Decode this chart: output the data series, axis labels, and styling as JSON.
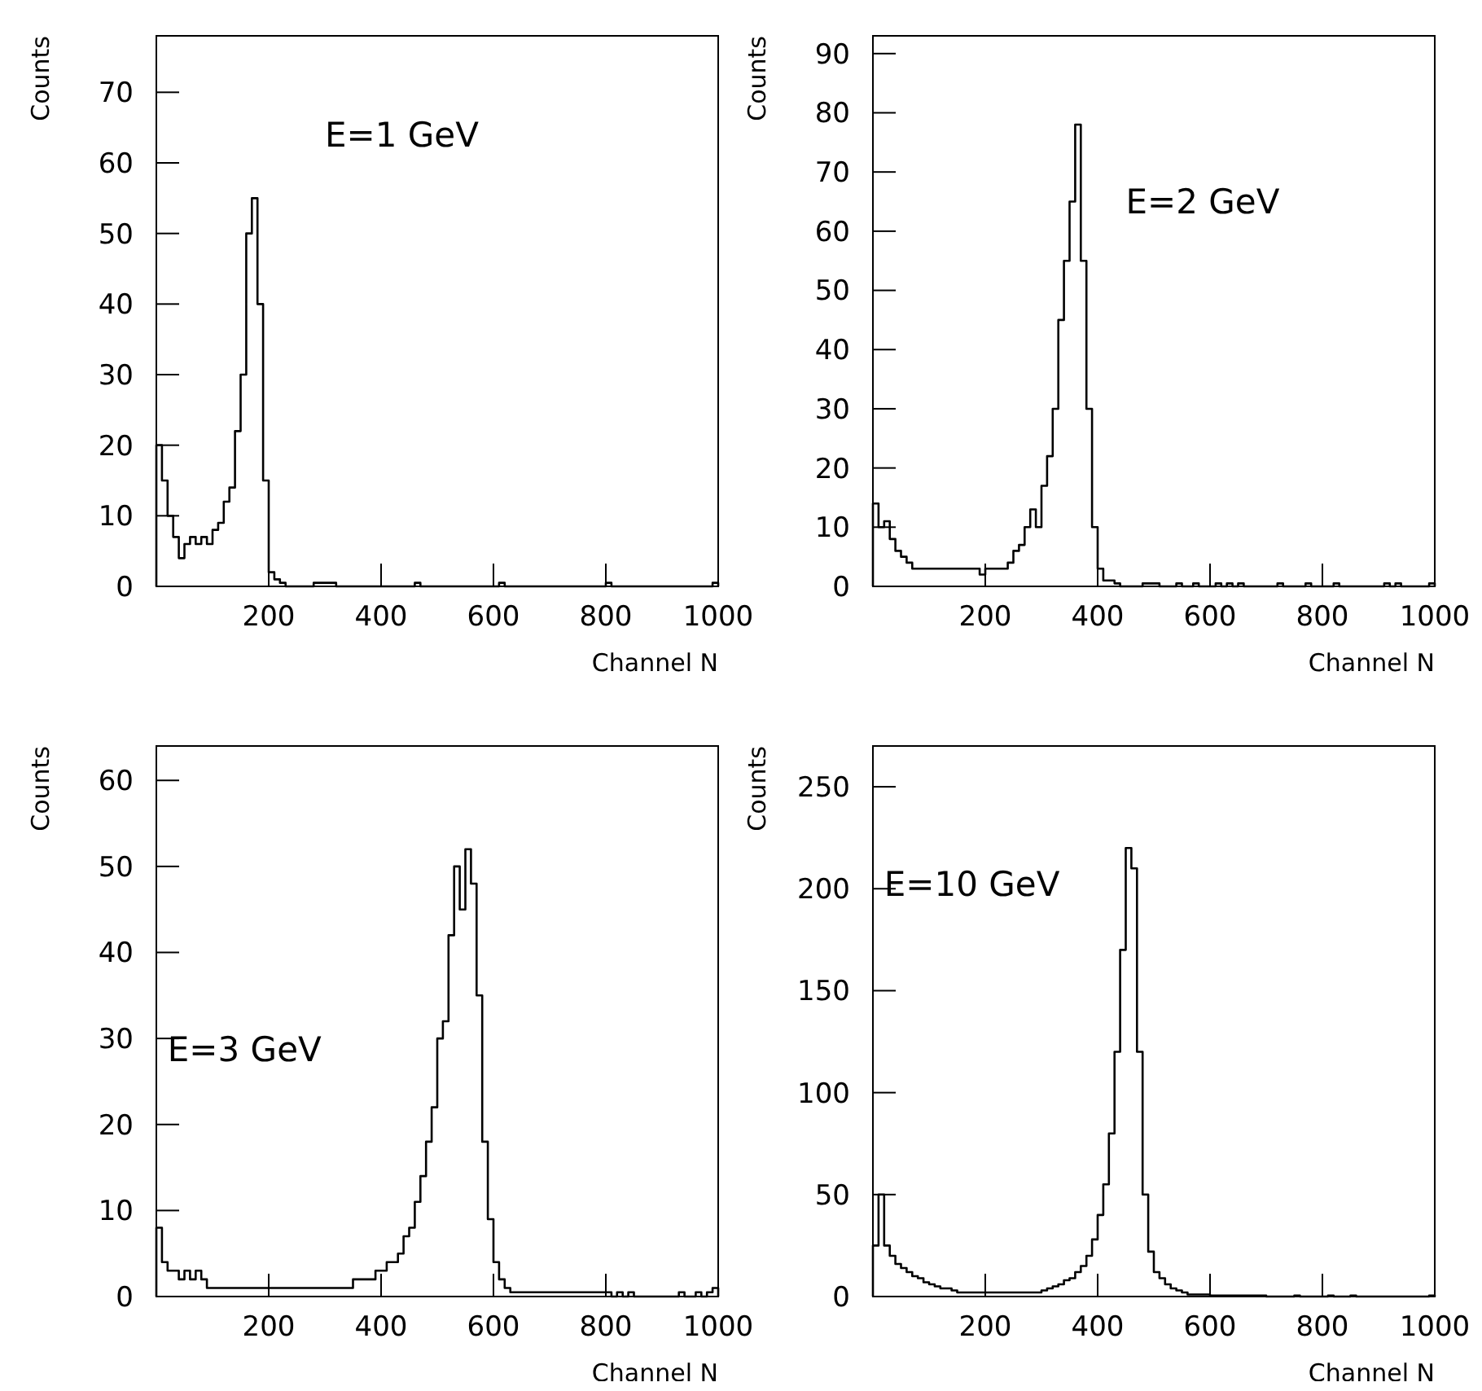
{
  "chart_data": [
    {
      "type": "histogram",
      "xlabel": "Channel N",
      "ylabel": "Counts",
      "annotations": [
        "E=1 GeV"
      ],
      "xlim": [
        0,
        1000
      ],
      "xticks": [
        200,
        400,
        600,
        800,
        1000
      ],
      "ylim": [
        0,
        78
      ],
      "yticks": [
        0,
        10,
        20,
        30,
        40,
        50,
        60,
        70
      ],
      "color": "#000000",
      "bins": [
        0,
        10,
        20,
        30,
        40,
        50,
        60,
        70,
        80,
        90,
        100,
        110,
        120,
        130,
        140,
        150,
        160,
        170,
        180,
        190,
        200,
        210,
        220,
        230,
        240,
        250,
        260,
        270,
        280,
        290,
        300,
        310,
        320,
        330,
        340,
        350,
        360,
        370,
        380,
        390,
        400,
        410,
        420,
        430,
        440,
        450,
        460,
        470,
        480,
        490,
        500,
        510,
        520,
        530,
        540,
        550,
        560,
        570,
        580,
        590,
        600,
        610,
        620,
        630,
        640,
        650,
        660,
        670,
        680,
        690,
        700,
        710,
        720,
        730,
        740,
        750,
        760,
        770,
        780,
        790,
        800,
        810,
        820,
        830,
        840,
        850,
        860,
        870,
        880,
        890,
        900,
        910,
        920,
        930,
        940,
        950,
        960,
        970,
        980,
        990,
        1000
      ],
      "values": [
        20,
        15,
        10,
        7,
        4,
        6,
        7,
        6,
        7,
        6,
        8,
        9,
        12,
        14,
        22,
        30,
        50,
        55,
        40,
        15,
        2,
        1,
        0.5,
        0,
        0,
        0,
        0,
        0,
        0.5,
        0.5,
        0.5,
        0.5,
        0,
        0,
        0,
        0,
        0,
        0,
        0,
        0,
        0,
        0,
        0,
        0,
        0,
        0,
        0.5,
        0,
        0,
        0,
        0,
        0,
        0,
        0,
        0,
        0,
        0,
        0,
        0,
        0,
        0,
        0.5,
        0,
        0,
        0,
        0,
        0,
        0,
        0,
        0,
        0,
        0,
        0,
        0,
        0,
        0,
        0,
        0,
        0,
        0,
        0.5,
        0,
        0,
        0,
        0,
        0,
        0,
        0,
        0,
        0,
        0,
        0,
        0,
        0,
        0,
        0,
        0,
        0,
        0,
        0.5
      ]
    },
    {
      "type": "histogram",
      "xlabel": "Channel N",
      "ylabel": "Counts",
      "annotations": [
        "E=2 GeV"
      ],
      "xlim": [
        0,
        1000
      ],
      "xticks": [
        200,
        400,
        600,
        800,
        1000
      ],
      "ylim": [
        0,
        93
      ],
      "yticks": [
        0,
        10,
        20,
        30,
        40,
        50,
        60,
        70,
        80,
        90
      ],
      "color": "#000000",
      "bins": [
        0,
        10,
        20,
        30,
        40,
        50,
        60,
        70,
        80,
        90,
        100,
        110,
        120,
        130,
        140,
        150,
        160,
        170,
        180,
        190,
        200,
        210,
        220,
        230,
        240,
        250,
        260,
        270,
        280,
        290,
        300,
        310,
        320,
        330,
        340,
        350,
        360,
        370,
        380,
        390,
        400,
        410,
        420,
        430,
        440,
        450,
        460,
        470,
        480,
        490,
        500,
        510,
        520,
        530,
        540,
        550,
        560,
        570,
        580,
        590,
        600,
        610,
        620,
        630,
        640,
        650,
        660,
        670,
        680,
        690,
        700,
        710,
        720,
        730,
        740,
        750,
        760,
        770,
        780,
        790,
        800,
        810,
        820,
        830,
        840,
        850,
        860,
        870,
        880,
        890,
        900,
        910,
        920,
        930,
        940,
        950,
        960,
        970,
        980,
        990,
        1000
      ],
      "values": [
        14,
        10,
        11,
        8,
        6,
        5,
        4,
        3,
        3,
        3,
        3,
        3,
        3,
        3,
        3,
        3,
        3,
        3,
        3,
        2,
        3,
        3,
        3,
        3,
        4,
        6,
        7,
        10,
        13,
        10,
        17,
        22,
        30,
        45,
        55,
        65,
        78,
        55,
        30,
        10,
        3,
        1,
        1,
        0.5,
        0,
        0,
        0,
        0,
        0.5,
        0.5,
        0.5,
        0,
        0,
        0,
        0.5,
        0,
        0,
        0.5,
        0,
        0,
        0,
        0.5,
        0,
        0.5,
        0,
        0.5,
        0,
        0,
        0,
        0,
        0,
        0,
        0.5,
        0,
        0,
        0,
        0,
        0.5,
        0,
        0,
        0,
        0,
        0.5,
        0,
        0,
        0,
        0,
        0,
        0,
        0,
        0,
        0.5,
        0,
        0.5,
        0,
        0,
        0,
        0,
        0,
        0.5
      ]
    },
    {
      "type": "histogram",
      "xlabel": "Channel N",
      "ylabel": "Counts",
      "annotations": [
        "E=3 GeV"
      ],
      "xlim": [
        0,
        1000
      ],
      "xticks": [
        200,
        400,
        600,
        800,
        1000
      ],
      "ylim": [
        0,
        64
      ],
      "yticks": [
        0,
        10,
        20,
        30,
        40,
        50,
        60
      ],
      "color": "#000000",
      "bins": [
        0,
        10,
        20,
        30,
        40,
        50,
        60,
        70,
        80,
        90,
        100,
        110,
        120,
        130,
        140,
        150,
        160,
        170,
        180,
        190,
        200,
        210,
        220,
        230,
        240,
        250,
        260,
        270,
        280,
        290,
        300,
        310,
        320,
        330,
        340,
        350,
        360,
        370,
        380,
        390,
        400,
        410,
        420,
        430,
        440,
        450,
        460,
        470,
        480,
        490,
        500,
        510,
        520,
        530,
        540,
        550,
        560,
        570,
        580,
        590,
        600,
        610,
        620,
        630,
        640,
        650,
        660,
        670,
        680,
        690,
        700,
        710,
        720,
        730,
        740,
        750,
        760,
        770,
        780,
        790,
        800,
        810,
        820,
        830,
        840,
        850,
        860,
        870,
        880,
        890,
        900,
        910,
        920,
        930,
        940,
        950,
        960,
        970,
        980,
        990,
        1000
      ],
      "values": [
        8,
        4,
        3,
        3,
        2,
        3,
        2,
        3,
        2,
        1,
        1,
        1,
        1,
        1,
        1,
        1,
        1,
        1,
        1,
        1,
        1,
        1,
        1,
        1,
        1,
        1,
        1,
        1,
        1,
        1,
        1,
        1,
        1,
        1,
        1,
        2,
        2,
        2,
        2,
        3,
        3,
        4,
        4,
        5,
        7,
        8,
        11,
        14,
        18,
        22,
        30,
        32,
        42,
        50,
        45,
        52,
        48,
        35,
        18,
        9,
        4,
        2,
        1,
        0.5,
        0.5,
        0.5,
        0.5,
        0.5,
        0.5,
        0.5,
        0.5,
        0.5,
        0.5,
        0.5,
        0.5,
        0.5,
        0.5,
        0.5,
        0.5,
        0.5,
        0.5,
        0,
        0.5,
        0,
        0.5,
        0,
        0,
        0,
        0,
        0,
        0,
        0,
        0,
        0.5,
        0,
        0,
        0.5,
        0,
        0.5,
        1
      ]
    },
    {
      "type": "histogram",
      "xlabel": "Channel N",
      "ylabel": "Counts",
      "annotations": [
        "E=10 GeV"
      ],
      "xlim": [
        0,
        1000
      ],
      "xticks": [
        200,
        400,
        600,
        800,
        1000
      ],
      "ylim": [
        0,
        270
      ],
      "yticks": [
        0,
        50,
        100,
        150,
        200,
        250
      ],
      "color": "#000000",
      "bins": [
        0,
        10,
        20,
        30,
        40,
        50,
        60,
        70,
        80,
        90,
        100,
        110,
        120,
        130,
        140,
        150,
        160,
        170,
        180,
        190,
        200,
        210,
        220,
        230,
        240,
        250,
        260,
        270,
        280,
        290,
        300,
        310,
        320,
        330,
        340,
        350,
        360,
        370,
        380,
        390,
        400,
        410,
        420,
        430,
        440,
        450,
        460,
        470,
        480,
        490,
        500,
        510,
        520,
        530,
        540,
        550,
        560,
        570,
        580,
        590,
        600,
        610,
        620,
        630,
        640,
        650,
        660,
        670,
        680,
        690,
        700,
        710,
        720,
        730,
        740,
        750,
        760,
        770,
        780,
        790,
        800,
        810,
        820,
        830,
        840,
        850,
        860,
        870,
        880,
        890,
        900,
        910,
        920,
        930,
        940,
        950,
        960,
        970,
        980,
        990,
        1000
      ],
      "values": [
        25,
        50,
        25,
        20,
        16,
        14,
        12,
        10,
        9,
        7,
        6,
        5,
        4,
        4,
        3,
        2,
        2,
        2,
        2,
        2,
        2,
        2,
        2,
        2,
        2,
        2,
        2,
        2,
        2,
        2,
        3,
        4,
        5,
        6,
        8,
        9,
        12,
        15,
        20,
        28,
        40,
        55,
        80,
        120,
        170,
        220,
        210,
        120,
        50,
        22,
        12,
        9,
        6,
        4,
        3,
        2,
        1,
        1,
        1,
        1,
        0.5,
        0.5,
        0.5,
        0.5,
        0.5,
        0.5,
        0.5,
        0.5,
        0.5,
        0.5,
        0,
        0,
        0,
        0,
        0,
        0.5,
        0,
        0,
        0,
        0,
        0,
        0.5,
        0,
        0,
        0,
        0.5,
        0,
        0,
        0,
        0,
        0,
        0,
        0,
        0,
        0,
        0,
        0,
        0,
        0,
        0.5
      ]
    }
  ]
}
